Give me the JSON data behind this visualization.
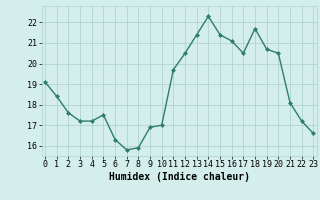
{
  "x": [
    0,
    1,
    2,
    3,
    4,
    5,
    6,
    7,
    8,
    9,
    10,
    11,
    12,
    13,
    14,
    15,
    16,
    17,
    18,
    19,
    20,
    21,
    22,
    23
  ],
  "y": [
    19.1,
    18.4,
    17.6,
    17.2,
    17.2,
    17.5,
    16.3,
    15.8,
    15.9,
    16.9,
    17.0,
    19.7,
    20.5,
    21.4,
    22.3,
    21.4,
    21.1,
    20.5,
    21.7,
    20.7,
    20.5,
    18.1,
    17.2,
    16.6
  ],
  "line_color": "#2e7d6e",
  "marker": "D",
  "markersize": 2.0,
  "linewidth": 1.0,
  "bg_color": "#d4eeeb",
  "grid_color": "#b0d4d0",
  "xlabel": "Humidex (Indice chaleur)",
  "xlabel_fontsize": 7,
  "tick_fontsize": 6,
  "ylim": [
    15.5,
    22.8
  ],
  "yticks": [
    16,
    17,
    18,
    19,
    20,
    21,
    22
  ],
  "xticks": [
    0,
    1,
    2,
    3,
    4,
    5,
    6,
    7,
    8,
    9,
    10,
    11,
    12,
    13,
    14,
    15,
    16,
    17,
    18,
    19,
    20,
    21,
    22,
    23
  ],
  "xlim": [
    -0.3,
    23.3
  ]
}
